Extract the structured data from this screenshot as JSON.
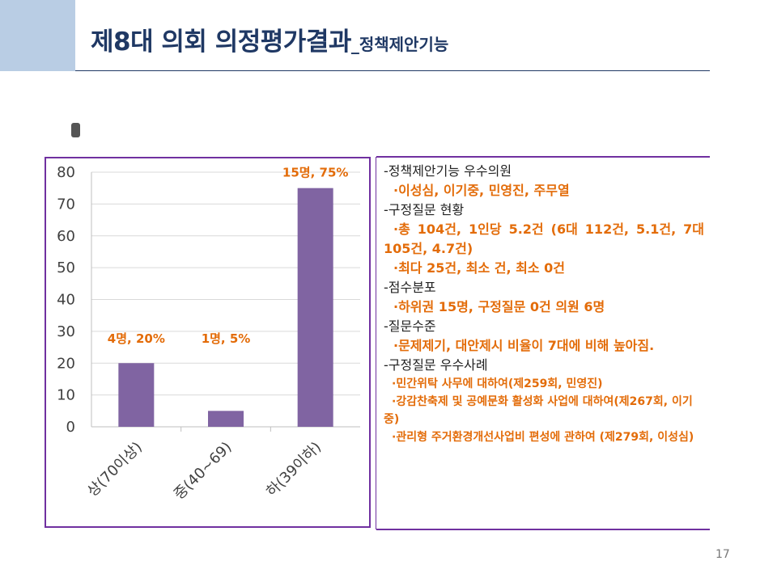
{
  "slide": {
    "title_main": "제8대 의회 의정평가결과",
    "title_sub": "_정책제안기능",
    "page_number": "17"
  },
  "chart_data": {
    "type": "bar",
    "categories": [
      "상(70이상)",
      "중(40~69)",
      "하(39이하)"
    ],
    "values": [
      20,
      5,
      75
    ],
    "data_labels": [
      "4명, 20%",
      "1명, 5%",
      "15명, 75%"
    ],
    "yticks": [
      "0",
      "10",
      "20",
      "30",
      "40",
      "50",
      "60",
      "70",
      "80"
    ],
    "ylim": [
      0,
      80
    ],
    "bar_color": "#8064a2",
    "label_color": "#e36c09",
    "grid": true
  },
  "notes": {
    "h1": "-정책제안기능 우수의원",
    "i1": "·이성심, 이기중, 민영진, 주무열",
    "h2": "-구정질문 현황",
    "i2": "·총 104건, 1인당 5.2건 (6대 112건, 5.1건, 7대 105건, 4.7건)",
    "i3": "·최다 25건, 최소 건, 최소 0건",
    "h3": "-점수분포",
    "i4": "·하위권 15명, 구정질문 0건 의원 6명",
    "h4": "-질문수준",
    "i5": "·문제제기, 대안제시 비율이 7대에 비해 높아짐.",
    "h5": "-구정질문 우수사례",
    "i6": "·민간위탁 사무에 대하여(제259회, 민영진)",
    "i7": "·강감찬축제 및 공예문화 활성화 사업에 대하여(제267회, 이기중)",
    "i8": "·관리형 주거환경개선사업비 편성에 관하여 (제279회, 이성심)"
  },
  "colors": {
    "title": "#1f3864",
    "accent_block": "#b9cde4",
    "frame": "#7030a0",
    "highlight_text": "#e36c09"
  }
}
